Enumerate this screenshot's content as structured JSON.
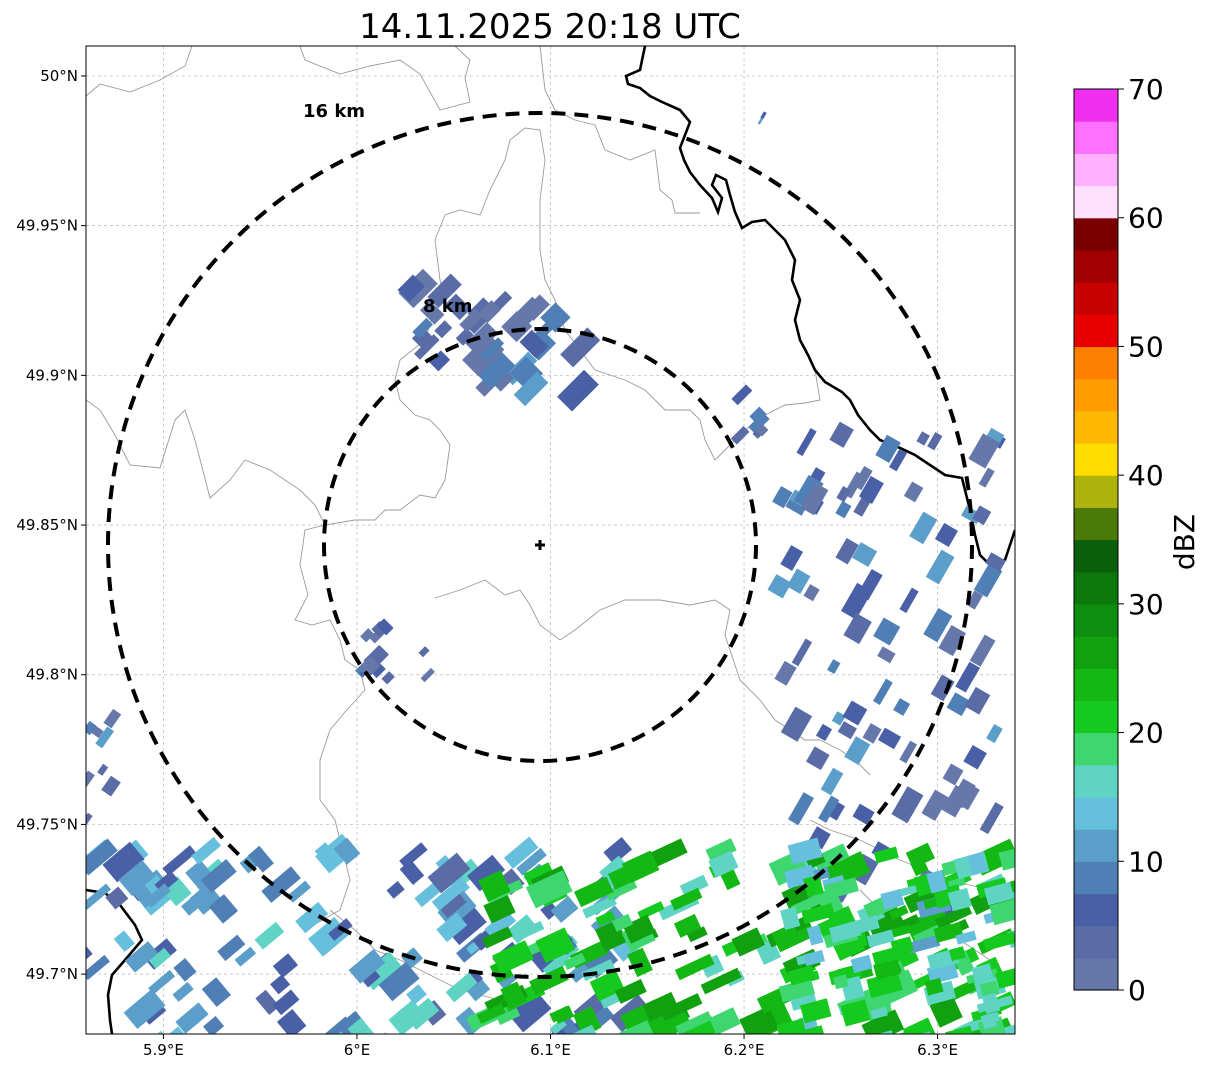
{
  "title": "14.11.2025 20:18 UTC",
  "map": {
    "lon_range": [
      5.86,
      6.34
    ],
    "lat_range": [
      49.68,
      50.01
    ],
    "x_ticks": [
      {
        "value": 5.9,
        "label": "5.9°E"
      },
      {
        "value": 6.0,
        "label": "6°E"
      },
      {
        "value": 6.1,
        "label": "6.1°E"
      },
      {
        "value": 6.2,
        "label": "6.2°E"
      },
      {
        "value": 6.3,
        "label": "6.3°E"
      }
    ],
    "y_ticks": [
      {
        "value": 49.7,
        "label": "49.7°N"
      },
      {
        "value": 49.75,
        "label": "49.75°N"
      },
      {
        "value": 49.8,
        "label": "49.8°N"
      },
      {
        "value": 49.85,
        "label": "49.85°N"
      },
      {
        "value": 49.9,
        "label": "49.9°N"
      },
      {
        "value": 49.95,
        "label": "49.95°N"
      },
      {
        "value": 50.0,
        "label": "50°N"
      }
    ],
    "grid": true,
    "radar_center": {
      "lon": 6.095,
      "lat": 49.843
    },
    "range_rings": [
      {
        "label": "8 km",
        "radius_km": 8
      },
      {
        "label": "16 km",
        "radius_km": 16
      }
    ]
  },
  "colorbar": {
    "label": "dBZ",
    "min": 0,
    "max": 70,
    "ticks": [
      {
        "value": 0,
        "label": "0"
      },
      {
        "value": 10,
        "label": "10"
      },
      {
        "value": 20,
        "label": "20"
      },
      {
        "value": 30,
        "label": "30"
      },
      {
        "value": 40,
        "label": "40"
      },
      {
        "value": 50,
        "label": "50"
      },
      {
        "value": 60,
        "label": "60"
      },
      {
        "value": 70,
        "label": "70"
      }
    ],
    "colors": [
      "#6677aa",
      "#5a6ca6",
      "#4a60a6",
      "#4f7fb5",
      "#5a9ec9",
      "#66bfdc",
      "#5fd4c4",
      "#3ed66e",
      "#15c91f",
      "#14b814",
      "#10a010",
      "#0e8e0e",
      "#0c780c",
      "#0a5f0a",
      "#4a7a0a",
      "#afb20a",
      "#ffdd00",
      "#ffb800",
      "#ff9c00",
      "#ff7f00",
      "#e80000",
      "#c80000",
      "#a00000",
      "#7a0000",
      "#ffe0ff",
      "#ffb0ff",
      "#ff70ff",
      "#f030f0"
    ]
  },
  "chart_data": {
    "type": "heatmap",
    "title": "14.11.2025 20:18 UTC",
    "xlabel": "",
    "ylabel": "",
    "xlim": [
      5.86,
      6.34
    ],
    "ylim": [
      49.68,
      50.01
    ],
    "colorbar_label": "dBZ",
    "colorbar_range": [
      0,
      70
    ],
    "echo_regions": [
      {
        "lon": 6.045,
        "lat": 49.917,
        "dbz": 5
      },
      {
        "lon": 6.09,
        "lat": 49.908,
        "dbz": 5
      },
      {
        "lon": 6.2,
        "lat": 49.885,
        "dbz": 5
      },
      {
        "lon": 6.21,
        "lat": 49.985,
        "dbz": 5
      },
      {
        "lon": 6.02,
        "lat": 49.81,
        "dbz": 5
      },
      {
        "lon": 6.275,
        "lat": 49.8,
        "dbz": 6
      },
      {
        "lon": 5.865,
        "lat": 49.77,
        "dbz": 5
      },
      {
        "lon": 6.0,
        "lat": 49.705,
        "dbz": 10
      },
      {
        "lon": 6.2,
        "lat": 49.705,
        "dbz": 22
      },
      {
        "lon": 6.3,
        "lat": 49.705,
        "dbz": 18
      }
    ]
  }
}
